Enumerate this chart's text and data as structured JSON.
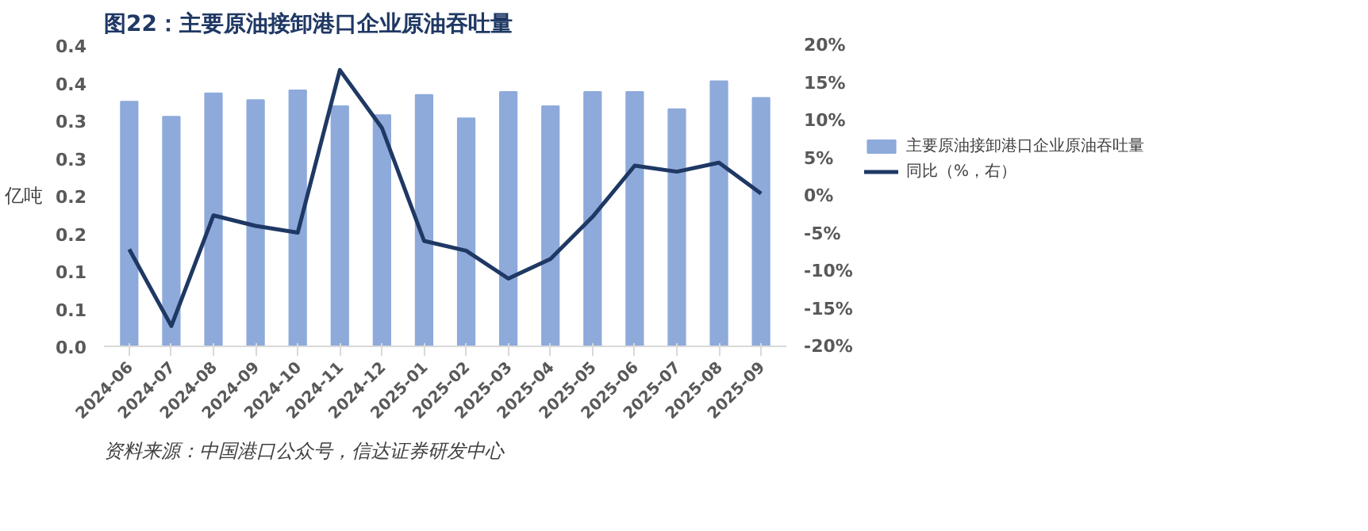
{
  "chart_data": {
    "type": "bar",
    "title": "图22：主要原油接卸港口企业原油吞吐量",
    "ylabel": "亿吨",
    "categories": [
      "2024-06",
      "2024-07",
      "2024-08",
      "2024-09",
      "2024-10",
      "2024-11",
      "2024-12",
      "2025-01",
      "2025-02",
      "2025-03",
      "2025-04",
      "2025-05",
      "2025-06",
      "2025-07",
      "2025-08",
      "2025-09"
    ],
    "series": [
      {
        "name": "主要原油接卸港口企业原油吞吐量",
        "color": "#8eaadb",
        "values": [
          0.325,
          0.305,
          0.336,
          0.327,
          0.34,
          0.319,
          0.307,
          0.334,
          0.303,
          0.338,
          0.319,
          0.338,
          0.338,
          0.315,
          0.352,
          0.33
        ]
      },
      {
        "name": "同比（%，右）",
        "type": "line",
        "axis": "y2",
        "color": "#1f3864",
        "values": [
          -7.1,
          -17.3,
          -2.6,
          -4.0,
          -4.9,
          16.7,
          9.0,
          -6.0,
          -7.3,
          -11.0,
          -8.4,
          -2.8,
          4.0,
          3.2,
          4.4,
          0.3
        ]
      }
    ],
    "ylim": [
      0,
      0.4
    ],
    "yticks": [
      {
        "value": 0,
        "label": "0.0"
      },
      {
        "value": 0.05,
        "label": "0.1"
      },
      {
        "value": 0.1,
        "label": "0.1"
      },
      {
        "value": 0.15,
        "label": "0.2"
      },
      {
        "value": 0.2,
        "label": "0.2"
      },
      {
        "value": 0.25,
        "label": "0.3"
      },
      {
        "value": 0.3,
        "label": "0.3"
      },
      {
        "value": 0.35,
        "label": "0.4"
      },
      {
        "value": 0.4,
        "label": "0.4"
      }
    ],
    "y2lim": [
      -20,
      20
    ],
    "y2ticks": [
      {
        "value": -20,
        "label": "-20%"
      },
      {
        "value": -15,
        "label": "-15%"
      },
      {
        "value": -10,
        "label": "-10%"
      },
      {
        "value": -5,
        "label": "-5%"
      },
      {
        "value": 0,
        "label": "0%"
      },
      {
        "value": 5,
        "label": "5%"
      },
      {
        "value": 10,
        "label": "10%"
      },
      {
        "value": 15,
        "label": "15%"
      },
      {
        "value": 20,
        "label": "20%"
      }
    ],
    "legend": "right",
    "grid": false,
    "annotations": [
      "资料来源：中国港口公众号，信达证券研发中心"
    ]
  }
}
